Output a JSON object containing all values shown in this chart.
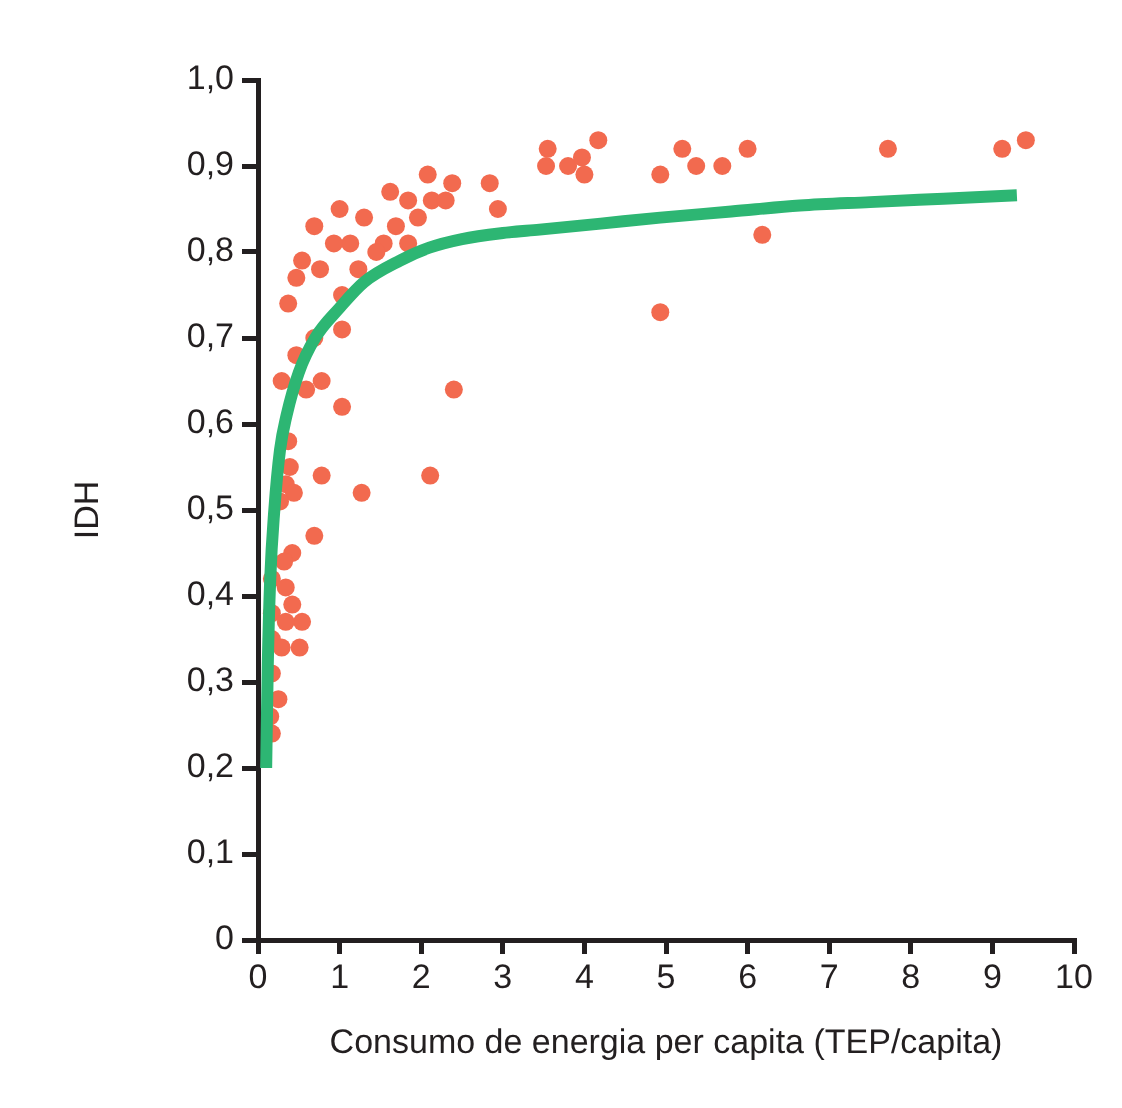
{
  "chart_data": {
    "type": "scatter",
    "xlabel": "Consumo de energia per capita (TEP/capita)",
    "ylabel": "IDH",
    "xlim": [
      0,
      10
    ],
    "xticks": [
      0,
      1,
      2,
      3,
      4,
      5,
      6,
      7,
      8,
      9,
      10
    ],
    "ylim": [
      0,
      1
    ],
    "yticks": [
      {
        "value": 0,
        "label": "0"
      },
      {
        "value": 0.1,
        "label": "0,1"
      },
      {
        "value": 0.2,
        "label": "0,2"
      },
      {
        "value": 0.3,
        "label": "0,3"
      },
      {
        "value": 0.4,
        "label": "0,4"
      },
      {
        "value": 0.5,
        "label": "0,5"
      },
      {
        "value": 0.6,
        "label": "0,6"
      },
      {
        "value": 0.7,
        "label": "0,7"
      },
      {
        "value": 0.8,
        "label": "0,8"
      },
      {
        "value": 0.9,
        "label": "0,9"
      },
      {
        "value": 1,
        "label": "1,0"
      }
    ],
    "grid": false,
    "legend": false,
    "series": [
      {
        "type": "scatter",
        "marker": "circle",
        "color": "#f26a4f",
        "x": [
          1.0,
          1.3,
          0.69,
          1.13,
          0.93,
          0.54,
          1.54,
          2.08,
          2.38,
          1.62,
          1.84,
          2.13,
          2.3,
          1.96,
          1.69,
          1.45,
          1.23,
          1.84,
          2.84,
          2.94,
          0.47,
          0.76,
          1.03,
          0.37,
          1.03,
          0.69,
          0.47,
          0.29,
          0.78,
          0.59,
          1.03,
          0.37,
          0.39,
          0.34,
          0.44,
          0.27,
          0.78,
          1.27,
          2.11,
          2.4,
          0.69,
          0.42,
          0.32,
          0.17,
          0.34,
          0.42,
          0.17,
          0.54,
          0.34,
          0.17,
          0.29,
          0.51,
          0.17,
          0.25,
          0.15,
          0.17,
          3.55,
          3.53,
          3.8,
          3.97,
          4.0,
          4.17,
          4.93,
          5.2,
          5.37,
          5.69,
          6.0,
          6.18,
          4.93,
          7.72,
          9.12,
          9.41
        ],
        "values": [
          0.85,
          0.84,
          0.83,
          0.81,
          0.81,
          0.79,
          0.81,
          0.89,
          0.88,
          0.87,
          0.86,
          0.86,
          0.86,
          0.84,
          0.83,
          0.8,
          0.78,
          0.81,
          0.88,
          0.85,
          0.77,
          0.78,
          0.75,
          0.74,
          0.71,
          0.7,
          0.68,
          0.65,
          0.65,
          0.64,
          0.62,
          0.58,
          0.55,
          0.53,
          0.52,
          0.51,
          0.54,
          0.52,
          0.54,
          0.64,
          0.47,
          0.45,
          0.44,
          0.42,
          0.41,
          0.39,
          0.38,
          0.37,
          0.37,
          0.35,
          0.34,
          0.34,
          0.31,
          0.28,
          0.26,
          0.24,
          0.92,
          0.9,
          0.9,
          0.91,
          0.89,
          0.93,
          0.89,
          0.92,
          0.9,
          0.9,
          0.92,
          0.82,
          0.73,
          0.92,
          0.92,
          0.93
        ]
      },
      {
        "type": "line",
        "marker": "none",
        "color": "#2db673",
        "x": [
          0.1,
          0.12,
          0.15,
          0.2,
          0.27,
          0.35,
          0.5,
          0.7,
          1.0,
          1.3,
          1.74,
          2.1,
          2.5,
          3.0,
          3.45,
          4.2,
          4.93,
          5.8,
          6.64,
          7.5,
          8.4,
          9.3
        ],
        "values": [
          0.2,
          0.32,
          0.42,
          0.5,
          0.57,
          0.61,
          0.66,
          0.7,
          0.735,
          0.765,
          0.79,
          0.805,
          0.815,
          0.822,
          0.826,
          0.833,
          0.84,
          0.847,
          0.854,
          0.858,
          0.862,
          0.866
        ]
      }
    ]
  }
}
